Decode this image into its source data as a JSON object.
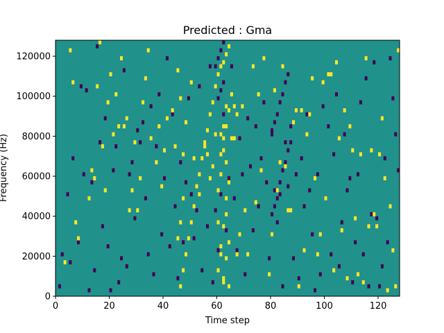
{
  "chart_data": {
    "type": "heatmap",
    "title": "Predicted : Gma",
    "xlabel": "Time step",
    "ylabel": "Frequency (Hz)",
    "xlim": [
      0,
      128
    ],
    "ylim": [
      0,
      128000
    ],
    "x_ticks": [
      0,
      20,
      40,
      60,
      80,
      100,
      120
    ],
    "y_ticks": [
      0,
      20000,
      40000,
      60000,
      80000,
      100000,
      120000
    ],
    "n_time_steps": 128,
    "n_frequency_bins": 64,
    "background_value": 0,
    "colormap": {
      "-1": "#440154",
      "0": "#21918c",
      "1": "#fde725"
    },
    "cells_value_1": [
      [
        3,
        8
      ],
      [
        5,
        61
      ],
      [
        6,
        53
      ],
      [
        7,
        18
      ],
      [
        8,
        14
      ],
      [
        12,
        24
      ],
      [
        13,
        31
      ],
      [
        14,
        29
      ],
      [
        15,
        52
      ],
      [
        16,
        63
      ],
      [
        17,
        37
      ],
      [
        18,
        26
      ],
      [
        19,
        48
      ],
      [
        20,
        55
      ],
      [
        21,
        40
      ],
      [
        22,
        50
      ],
      [
        23,
        42
      ],
      [
        24,
        59
      ],
      [
        25,
        42
      ],
      [
        26,
        44
      ],
      [
        27,
        21
      ],
      [
        28,
        26
      ],
      [
        29,
        38
      ],
      [
        30,
        21
      ],
      [
        31,
        29
      ],
      [
        32,
        48
      ],
      [
        33,
        54
      ],
      [
        34,
        61
      ],
      [
        35,
        39
      ],
      [
        37,
        33
      ],
      [
        38,
        42
      ],
      [
        39,
        27
      ],
      [
        40,
        36
      ],
      [
        41,
        44
      ],
      [
        43,
        46
      ],
      [
        44,
        37
      ],
      [
        45,
        56
      ],
      [
        46,
        49
      ],
      [
        47,
        35
      ],
      [
        48,
        43
      ],
      [
        50,
        53
      ],
      [
        51,
        34
      ],
      [
        53,
        25
      ],
      [
        55,
        37
      ],
      [
        56,
        35
      ],
      [
        57,
        29
      ],
      [
        58,
        32
      ],
      [
        59,
        40
      ],
      [
        60,
        18
      ],
      [
        61,
        10
      ],
      [
        62,
        4
      ],
      [
        63,
        33
      ],
      [
        64,
        2
      ],
      [
        65,
        39
      ],
      [
        66,
        39
      ],
      [
        67,
        10
      ],
      [
        68,
        15
      ],
      [
        69,
        47
      ],
      [
        70,
        21
      ],
      [
        71,
        10
      ],
      [
        73,
        57
      ],
      [
        74,
        23
      ],
      [
        75,
        50
      ],
      [
        76,
        31
      ],
      [
        77,
        59
      ],
      [
        79,
        5
      ],
      [
        80,
        15
      ],
      [
        81,
        51
      ],
      [
        82,
        26
      ],
      [
        83,
        33
      ],
      [
        84,
        57
      ],
      [
        85,
        32
      ],
      [
        86,
        21
      ],
      [
        87,
        21
      ],
      [
        88,
        43
      ],
      [
        89,
        46
      ],
      [
        90,
        2
      ],
      [
        91,
        46
      ],
      [
        92,
        11
      ],
      [
        93,
        40
      ],
      [
        94,
        45
      ],
      [
        95,
        54
      ],
      [
        96,
        29
      ],
      [
        97,
        10
      ],
      [
        98,
        15
      ],
      [
        99,
        53
      ],
      [
        100,
        24
      ],
      [
        101,
        55
      ],
      [
        102,
        55
      ],
      [
        103,
        6
      ],
      [
        104,
        58
      ],
      [
        105,
        39
      ],
      [
        106,
        16
      ],
      [
        107,
        46
      ],
      [
        108,
        4
      ],
      [
        109,
        42
      ],
      [
        110,
        36
      ],
      [
        111,
        19
      ],
      [
        112,
        5
      ],
      [
        113,
        35
      ],
      [
        114,
        3
      ],
      [
        115,
        59
      ],
      [
        116,
        17
      ],
      [
        117,
        36
      ],
      [
        118,
        20
      ],
      [
        119,
        17
      ],
      [
        120,
        35
      ],
      [
        121,
        44
      ],
      [
        122,
        29
      ],
      [
        123,
        1
      ],
      [
        124,
        22
      ],
      [
        125,
        11
      ],
      [
        126,
        2
      ],
      [
        127,
        61
      ],
      [
        46,
        2
      ],
      [
        47,
        6
      ],
      [
        48,
        10
      ],
      [
        49,
        14
      ],
      [
        50,
        18
      ],
      [
        51,
        22
      ],
      [
        52,
        27
      ],
      [
        53,
        30
      ],
      [
        54,
        34
      ],
      [
        55,
        38
      ],
      [
        56,
        41
      ],
      [
        57,
        45
      ],
      [
        58,
        48
      ],
      [
        59,
        52
      ],
      [
        60,
        55
      ],
      [
        61,
        57
      ],
      [
        62,
        58
      ],
      [
        63,
        60
      ],
      [
        64,
        62
      ],
      [
        65,
        50
      ],
      [
        66,
        47
      ],
      [
        67,
        45
      ],
      [
        45,
        14
      ],
      [
        46,
        18
      ],
      [
        47,
        24
      ],
      [
        60,
        26
      ],
      [
        61,
        30
      ],
      [
        62,
        36
      ],
      [
        63,
        42
      ],
      [
        64,
        46
      ],
      [
        60,
        6
      ],
      [
        61,
        12
      ],
      [
        62,
        17
      ],
      [
        63,
        24
      ],
      [
        64,
        28
      ],
      [
        61,
        40
      ],
      [
        62,
        42
      ],
      [
        63,
        47
      ],
      [
        62,
        3
      ],
      [
        63,
        9
      ],
      [
        64,
        13
      ],
      [
        61,
        35
      ],
      [
        62,
        39
      ],
      [
        63,
        20
      ]
    ],
    "cells_value_-1": [
      [
        1,
        2
      ],
      [
        2,
        10
      ],
      [
        4,
        25
      ],
      [
        5,
        8
      ],
      [
        6,
        34
      ],
      [
        8,
        13
      ],
      [
        9,
        52
      ],
      [
        10,
        30
      ],
      [
        11,
        51
      ],
      [
        12,
        1
      ],
      [
        13,
        28
      ],
      [
        14,
        6
      ],
      [
        15,
        62
      ],
      [
        16,
        38
      ],
      [
        17,
        17
      ],
      [
        18,
        44
      ],
      [
        19,
        12
      ],
      [
        20,
        1
      ],
      [
        21,
        31
      ],
      [
        22,
        37
      ],
      [
        23,
        3
      ],
      [
        24,
        9
      ],
      [
        25,
        56
      ],
      [
        26,
        7
      ],
      [
        27,
        30
      ],
      [
        28,
        33
      ],
      [
        29,
        19
      ],
      [
        30,
        41
      ],
      [
        31,
        38
      ],
      [
        32,
        43
      ],
      [
        33,
        24
      ],
      [
        34,
        10
      ],
      [
        35,
        47
      ],
      [
        36,
        5
      ],
      [
        37,
        37
      ],
      [
        38,
        50
      ],
      [
        39,
        15
      ],
      [
        40,
        29
      ],
      [
        41,
        59
      ],
      [
        42,
        12
      ],
      [
        43,
        45
      ],
      [
        44,
        22
      ],
      [
        45,
        4
      ],
      [
        46,
        33
      ],
      [
        47,
        13
      ],
      [
        48,
        28
      ],
      [
        49,
        49
      ],
      [
        50,
        25
      ],
      [
        51,
        14
      ],
      [
        52,
        21
      ],
      [
        53,
        52
      ],
      [
        54,
        6
      ],
      [
        55,
        38
      ],
      [
        56,
        17
      ],
      [
        57,
        57
      ],
      [
        58,
        3
      ],
      [
        59,
        21
      ],
      [
        60,
        11
      ],
      [
        61,
        25
      ],
      [
        62,
        45
      ],
      [
        63,
        16
      ],
      [
        64,
        29
      ],
      [
        65,
        57
      ],
      [
        66,
        24
      ],
      [
        67,
        11
      ],
      [
        68,
        39
      ],
      [
        69,
        30
      ],
      [
        70,
        5
      ],
      [
        71,
        44
      ],
      [
        72,
        32
      ],
      [
        73,
        16
      ],
      [
        74,
        42
      ],
      [
        75,
        22
      ],
      [
        76,
        34
      ],
      [
        77,
        48
      ],
      [
        78,
        28
      ],
      [
        79,
        9
      ],
      [
        80,
        40
      ],
      [
        81,
        26
      ],
      [
        82,
        18
      ],
      [
        83,
        25
      ],
      [
        84,
        2
      ],
      [
        85,
        38
      ],
      [
        86,
        27
      ],
      [
        87,
        42
      ],
      [
        88,
        9
      ],
      [
        89,
        30
      ],
      [
        90,
        4
      ],
      [
        91,
        34
      ],
      [
        92,
        22
      ],
      [
        93,
        45
      ],
      [
        94,
        26
      ],
      [
        95,
        15
      ],
      [
        96,
        1
      ],
      [
        97,
        30
      ],
      [
        98,
        5
      ],
      [
        99,
        47
      ],
      [
        100,
        24
      ],
      [
        101,
        42
      ],
      [
        102,
        10
      ],
      [
        103,
        35
      ],
      [
        104,
        50
      ],
      [
        105,
        7
      ],
      [
        106,
        18
      ],
      [
        107,
        40
      ],
      [
        108,
        26
      ],
      [
        109,
        29
      ],
      [
        110,
        3
      ],
      [
        111,
        13
      ],
      [
        112,
        30
      ],
      [
        113,
        48
      ],
      [
        114,
        10
      ],
      [
        115,
        54
      ],
      [
        116,
        2
      ],
      [
        117,
        20
      ],
      [
        118,
        58
      ],
      [
        119,
        19
      ],
      [
        120,
        2
      ],
      [
        121,
        7
      ],
      [
        122,
        34
      ],
      [
        123,
        13
      ],
      [
        124,
        59
      ],
      [
        125,
        49
      ],
      [
        126,
        40
      ],
      [
        127,
        31
      ],
      [
        80,
        20
      ],
      [
        81,
        22
      ],
      [
        82,
        24
      ],
      [
        83,
        28
      ],
      [
        84,
        31
      ],
      [
        85,
        33
      ],
      [
        86,
        36
      ],
      [
        87,
        38
      ],
      [
        80,
        41
      ],
      [
        81,
        43
      ],
      [
        82,
        45
      ],
      [
        83,
        48
      ],
      [
        84,
        50
      ],
      [
        85,
        53
      ],
      [
        86,
        55
      ],
      [
        59,
        57
      ],
      [
        60,
        59
      ],
      [
        61,
        61
      ],
      [
        62,
        63
      ],
      [
        60,
        49
      ],
      [
        61,
        51
      ],
      [
        62,
        53
      ]
    ]
  }
}
